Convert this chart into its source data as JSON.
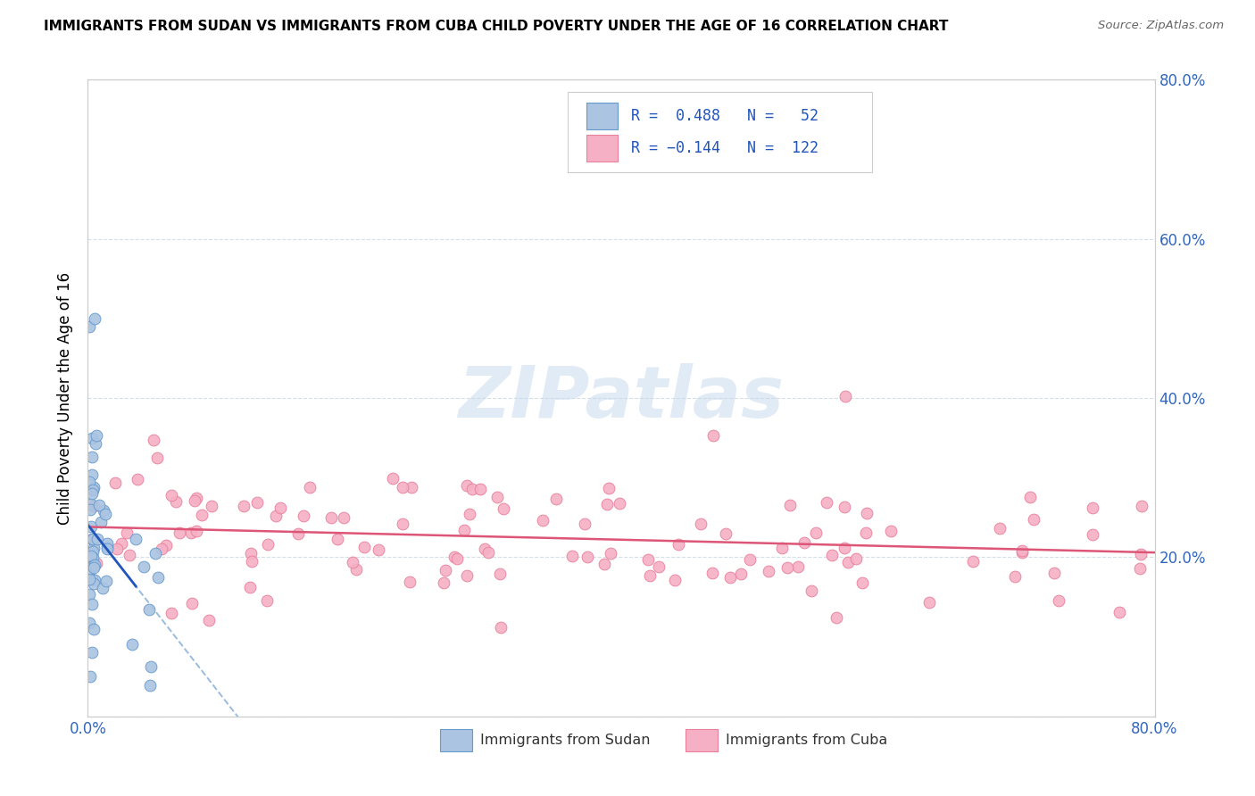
{
  "title": "IMMIGRANTS FROM SUDAN VS IMMIGRANTS FROM CUBA CHILD POVERTY UNDER THE AGE OF 16 CORRELATION CHART",
  "source": "Source: ZipAtlas.com",
  "ylabel": "Child Poverty Under the Age of 16",
  "xlim": [
    0.0,
    0.8
  ],
  "ylim": [
    0.0,
    0.8
  ],
  "sudan_color": "#aac4e2",
  "cuba_color": "#f5b0c5",
  "sudan_edge": "#6699cc",
  "cuba_edge": "#e8809a",
  "trendline_sudan_color": "#2255bb",
  "trendline_cuba_color": "#dd5577",
  "dashed_line_color": "#99bbdd",
  "legend_text_color": "#2255bb",
  "legend_R_color": "#2255bb",
  "watermark_color": "#c5d8ec",
  "tick_color": "#3366bb",
  "grid_color": "#d5dfe8",
  "spine_color": "#cccccc",
  "background": "#ffffff"
}
